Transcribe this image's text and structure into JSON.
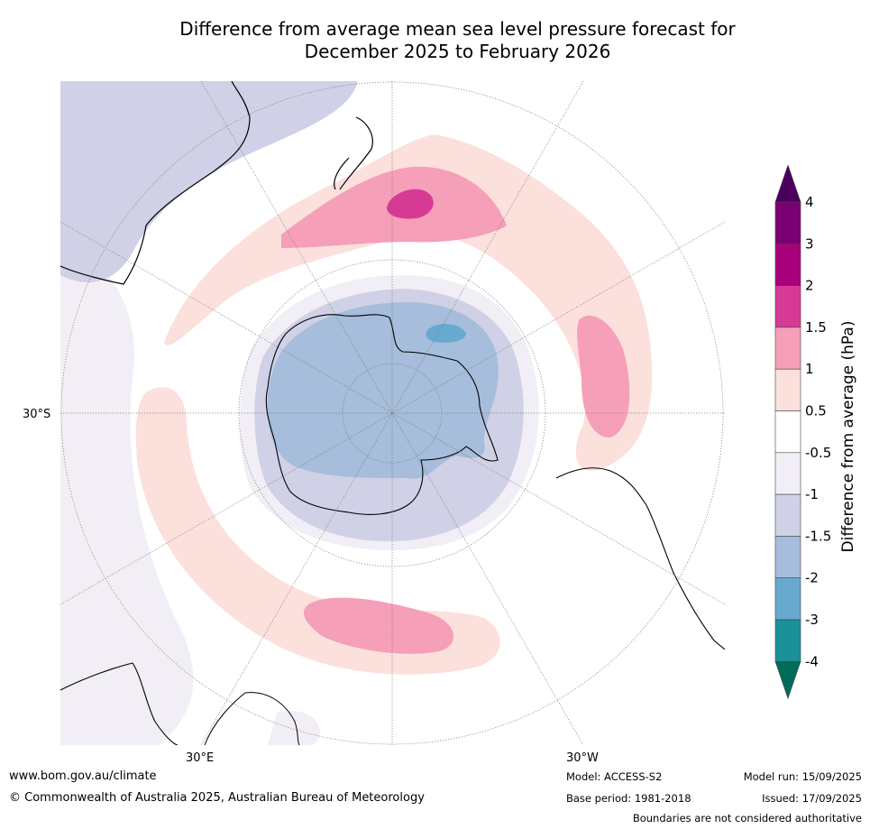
{
  "title": {
    "line1": "Difference from average mean sea level pressure forecast for",
    "line2": "December 2025 to February 2026"
  },
  "map": {
    "projection": "south-polar",
    "graticule_labels": {
      "lat": "30°S",
      "lon_east": "30°E",
      "lon_west": "30°W"
    },
    "regions": [
      {
        "name": "pink-band-pacific",
        "value_range": "0.5 to 1"
      },
      {
        "name": "pink-core-tasman",
        "value_range": "1 to 1.5"
      },
      {
        "name": "magenta-core-new-zealand",
        "value_range": "1.5 to 2"
      },
      {
        "name": "blue-antarctica",
        "value_range": "-1.5 to -2"
      },
      {
        "name": "teal-spot-ross-sea",
        "value_range": "-2 to -3"
      }
    ]
  },
  "colorbar": {
    "title": "Difference from average (hPa)",
    "tick_labels": [
      "4",
      "3",
      "2",
      "1.5",
      "1",
      "0.5",
      "-0.5",
      "-1",
      "-1.5",
      "-2",
      "-3",
      "-4"
    ],
    "colors": [
      "#4b0060",
      "#7a0073",
      "#a8007a",
      "#d63a94",
      "#f59fb8",
      "#fbe0dc",
      "#ffffff",
      "#f2eef5",
      "#d0d1e6",
      "#a6bddb",
      "#67a9cf",
      "#1c9099",
      "#016c59"
    ]
  },
  "footer": {
    "url": "www.bom.gov.au/climate",
    "copyright": "© Commonwealth of Australia 2025, Australian Bureau of Meteorology",
    "model": "Model: ACCESS-S2",
    "base_period": "Base period: 1981-2018",
    "model_run": "Model run: 15/09/2025",
    "issued": "Issued: 17/09/2025",
    "disclaimer": "Boundaries are not considered authoritative"
  }
}
